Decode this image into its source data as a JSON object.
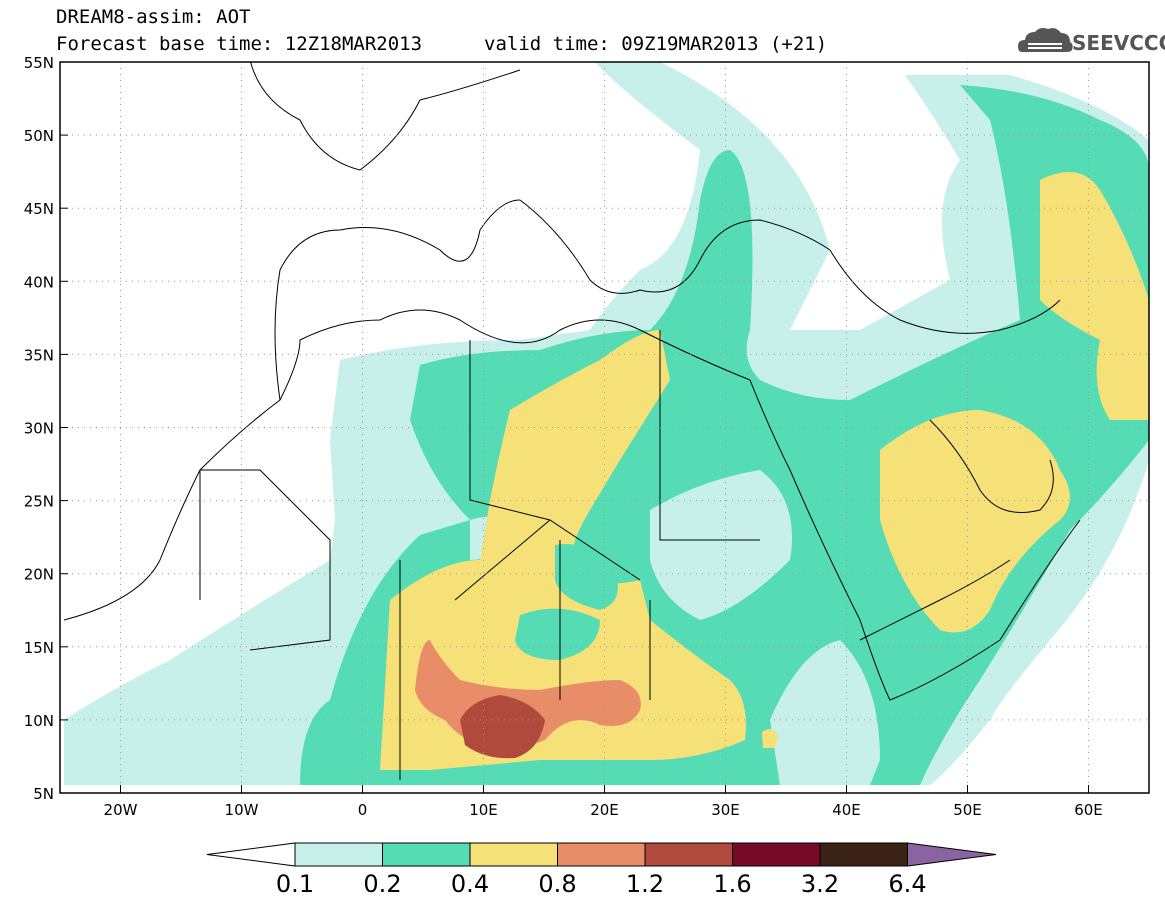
{
  "header": {
    "line1": "DREAM8-assim: AOT",
    "line2": "Forecast base time: 12Z18MAR2013",
    "valid": "valid time: 09Z19MAR2013 (+21)"
  },
  "logo": {
    "text": "SEEVCCC",
    "icon": "cloud-icon"
  },
  "map": {
    "lon_range": [
      -25,
      65
    ],
    "lat_range": [
      5,
      55
    ],
    "lat_ticks": [
      "5N",
      "10N",
      "15N",
      "20N",
      "25N",
      "30N",
      "35N",
      "40N",
      "45N",
      "50N",
      "55N"
    ],
    "lon_ticks": [
      "20W",
      "10W",
      "0",
      "10E",
      "20E",
      "30E",
      "40E",
      "50E",
      "60E"
    ],
    "grid": "dotted"
  },
  "colorbar": {
    "levels": [
      "0.1",
      "0.2",
      "0.4",
      "0.8",
      "1.2",
      "1.6",
      "3.2",
      "6.4"
    ],
    "colors": [
      "#ffffff",
      "#c8f0ea",
      "#55dcb4",
      "#f5e178",
      "#e98c68",
      "#b04a3c",
      "#780a28",
      "#3a2214",
      "#8a64a0"
    ]
  }
}
